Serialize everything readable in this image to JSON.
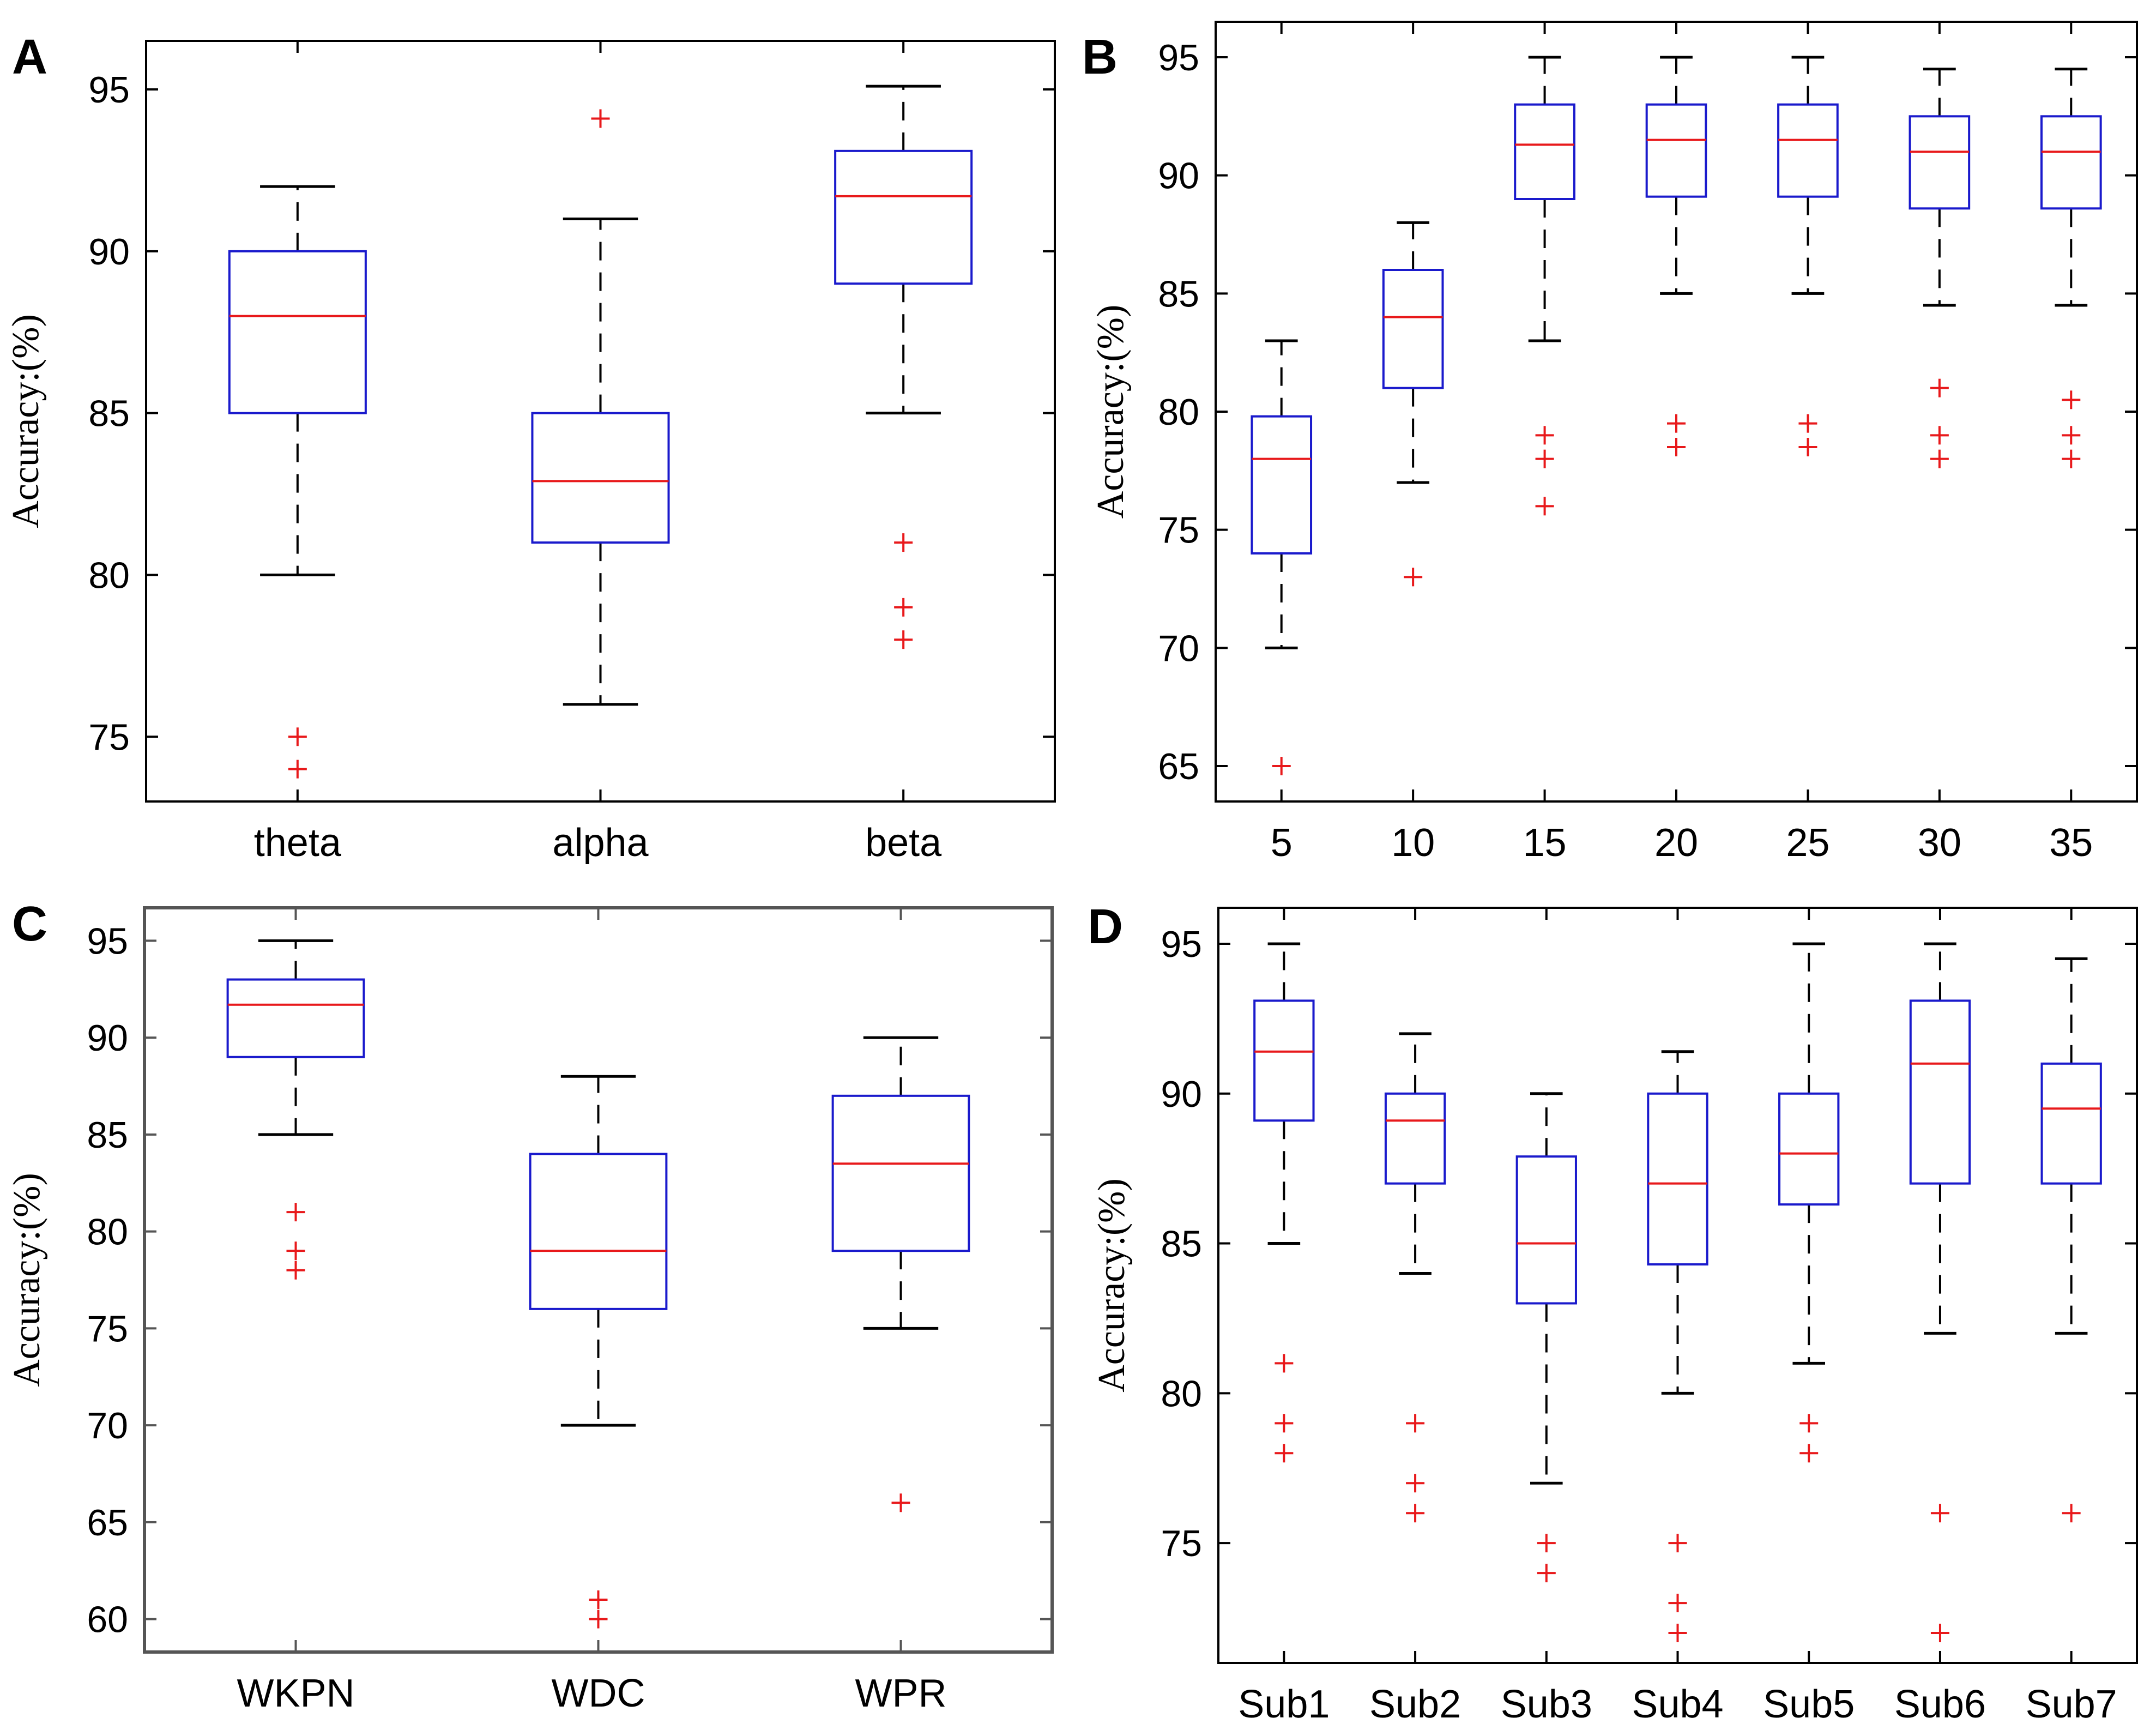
{
  "chart_data": [
    {
      "panel": "A",
      "type": "box",
      "ylabel": "Accuracy:(%)",
      "ylim": [
        73,
        96.5
      ],
      "yticks": [
        75,
        80,
        85,
        90,
        95
      ],
      "categories": [
        "theta",
        "alpha",
        "beta"
      ],
      "boxes": [
        {
          "label": "theta",
          "whisker_low": 80,
          "q1": 85,
          "median": 88,
          "q3": 90,
          "whisker_high": 92,
          "outliers": [
            75,
            74
          ]
        },
        {
          "label": "alpha",
          "whisker_low": 76,
          "q1": 81,
          "median": 82.9,
          "q3": 85,
          "whisker_high": 91,
          "outliers": [
            94.1
          ]
        },
        {
          "label": "beta",
          "whisker_low": 85,
          "q1": 89,
          "median": 91.7,
          "q3": 93.1,
          "whisker_high": 95.1,
          "outliers": [
            81,
            79,
            78
          ]
        }
      ]
    },
    {
      "panel": "B",
      "type": "box",
      "ylabel": "Accuracy:(%)",
      "ylim": [
        63.5,
        96.5
      ],
      "yticks": [
        65,
        70,
        75,
        80,
        85,
        90,
        95
      ],
      "categories": [
        "5",
        "10",
        "15",
        "20",
        "25",
        "30",
        "35"
      ],
      "boxes": [
        {
          "label": "5",
          "whisker_low": 70,
          "q1": 74,
          "median": 78,
          "q3": 79.8,
          "whisker_high": 83,
          "outliers": [
            65
          ]
        },
        {
          "label": "10",
          "whisker_low": 77,
          "q1": 81,
          "median": 84,
          "q3": 86,
          "whisker_high": 88,
          "outliers": [
            73
          ]
        },
        {
          "label": "15",
          "whisker_low": 83,
          "q1": 89,
          "median": 91.3,
          "q3": 93,
          "whisker_high": 95,
          "outliers": [
            79,
            78,
            76
          ]
        },
        {
          "label": "20",
          "whisker_low": 85,
          "q1": 89.1,
          "median": 91.5,
          "q3": 93,
          "whisker_high": 95,
          "outliers": [
            79.5,
            78.5
          ]
        },
        {
          "label": "25",
          "whisker_low": 85,
          "q1": 89.1,
          "median": 91.5,
          "q3": 93,
          "whisker_high": 95,
          "outliers": [
            79.5,
            78.5
          ]
        },
        {
          "label": "30",
          "whisker_low": 84.5,
          "q1": 88.6,
          "median": 91,
          "q3": 92.5,
          "whisker_high": 94.5,
          "outliers": [
            81,
            79,
            78
          ]
        },
        {
          "label": "35",
          "whisker_low": 84.5,
          "q1": 88.6,
          "median": 91,
          "q3": 92.5,
          "whisker_high": 94.5,
          "outliers": [
            80.5,
            79,
            78
          ]
        }
      ]
    },
    {
      "panel": "C",
      "type": "box",
      "ylabel": "Accuracy:(%)",
      "ylim": [
        58.3,
        96.7
      ],
      "yticks": [
        60,
        65,
        70,
        75,
        80,
        85,
        90,
        95
      ],
      "categories": [
        "WKPN",
        "WDC",
        "WPR"
      ],
      "boxes": [
        {
          "label": "WKPN",
          "whisker_low": 85,
          "q1": 89,
          "median": 91.7,
          "q3": 93,
          "whisker_high": 95,
          "outliers": [
            81,
            79,
            78
          ]
        },
        {
          "label": "WDC",
          "whisker_low": 70,
          "q1": 76,
          "median": 79,
          "q3": 84,
          "whisker_high": 88,
          "outliers": [
            61,
            60
          ]
        },
        {
          "label": "WPR",
          "whisker_low": 75,
          "q1": 79,
          "median": 83.5,
          "q3": 87,
          "whisker_high": 90,
          "outliers": [
            66
          ]
        }
      ]
    },
    {
      "panel": "D",
      "type": "box",
      "ylabel": "Accuracy:(%)",
      "ylim": [
        71,
        96.2
      ],
      "yticks": [
        75,
        80,
        85,
        90,
        95
      ],
      "categories": [
        "Sub1",
        "Sub2",
        "Sub3",
        "Sub4",
        "Sub5",
        "Sub6",
        "Sub7"
      ],
      "boxes": [
        {
          "label": "Sub1",
          "whisker_low": 85,
          "q1": 89.1,
          "median": 91.4,
          "q3": 93.1,
          "whisker_high": 95,
          "outliers": [
            81,
            79,
            78
          ]
        },
        {
          "label": "Sub2",
          "whisker_low": 84,
          "q1": 87,
          "median": 89.1,
          "q3": 90,
          "whisker_high": 92,
          "outliers": [
            79,
            77,
            76
          ]
        },
        {
          "label": "Sub3",
          "whisker_low": 77,
          "q1": 83,
          "median": 85,
          "q3": 87.9,
          "whisker_high": 90,
          "outliers": [
            75,
            74
          ]
        },
        {
          "label": "Sub4",
          "whisker_low": 80,
          "q1": 84.3,
          "median": 87,
          "q3": 90,
          "whisker_high": 91.4,
          "outliers": [
            75,
            73,
            72
          ]
        },
        {
          "label": "Sub5",
          "whisker_low": 81,
          "q1": 86.3,
          "median": 88,
          "q3": 90,
          "whisker_high": 95,
          "outliers": [
            79,
            78
          ]
        },
        {
          "label": "Sub6",
          "whisker_low": 82,
          "q1": 87,
          "median": 91,
          "q3": 93.1,
          "whisker_high": 95,
          "outliers": [
            76,
            72
          ]
        },
        {
          "label": "Sub7",
          "whisker_low": 82,
          "q1": 87,
          "median": 89.5,
          "q3": 91,
          "whisker_high": 94.5,
          "outliers": [
            76
          ]
        }
      ]
    }
  ],
  "colors": {
    "box": "#1a1acc",
    "median": "#e8191b",
    "whisker": "#000000",
    "outlier": "#e8191b",
    "axis": "#000000"
  }
}
